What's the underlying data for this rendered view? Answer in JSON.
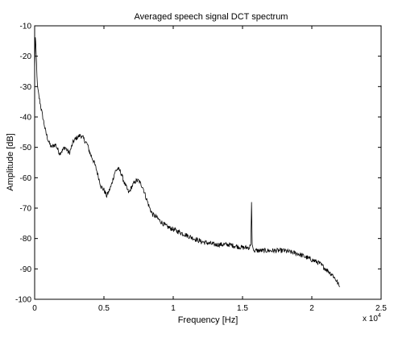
{
  "chart_data": {
    "type": "line",
    "title": "Averaged speech signal DCT spectrum",
    "xlabel": "Frequency [Hz]",
    "ylabel": "Amplitude [dB]",
    "x_multiplier_label": "x 10",
    "x_multiplier_exponent": "4",
    "xlim": [
      0,
      2.5
    ],
    "ylim": [
      -100,
      -10
    ],
    "grid": false,
    "legend": "none",
    "x_ticks": [
      0,
      0.5,
      1,
      1.5,
      2,
      2.5
    ],
    "x_tick_labels": [
      "0",
      "0.5",
      "1",
      "1.5",
      "2",
      "2.5"
    ],
    "y_ticks": [
      -100,
      -90,
      -80,
      -70,
      -60,
      -50,
      -40,
      -30,
      -20,
      -10
    ],
    "y_tick_labels": [
      "-100",
      "-90",
      "-80",
      "-70",
      "-60",
      "-50",
      "-40",
      "-30",
      "-20",
      "-10"
    ],
    "series": [
      {
        "x": [
          0,
          0.005,
          0.01,
          0.02,
          0.03,
          0.05,
          0.08,
          0.1,
          0.12,
          0.15,
          0.18,
          0.2,
          0.22,
          0.25,
          0.28,
          0.3,
          0.33,
          0.35,
          0.38,
          0.4,
          0.43,
          0.45,
          0.48,
          0.5,
          0.52,
          0.55,
          0.58,
          0.6,
          0.62,
          0.65,
          0.68,
          0.7,
          0.73,
          0.75,
          0.78,
          0.8,
          0.83,
          0.85,
          0.88,
          0.9,
          0.95,
          1.0,
          1.05,
          1.1,
          1.15,
          1.2,
          1.3,
          1.4,
          1.5,
          1.55,
          1.56,
          1.565,
          1.57,
          1.575,
          1.58,
          1.6,
          1.7,
          1.8,
          1.9,
          2.0,
          2.05,
          2.1,
          2.15,
          2.18,
          2.2
        ],
        "y": [
          -25,
          -14,
          -18,
          -30,
          -33,
          -38,
          -45,
          -48,
          -50,
          -49,
          -52,
          -51,
          -50,
          -52,
          -48,
          -47,
          -46,
          -47,
          -49,
          -52,
          -55,
          -58,
          -63,
          -64,
          -66,
          -63,
          -58,
          -57,
          -58,
          -62,
          -65,
          -63,
          -61,
          -61,
          -63,
          -66,
          -70,
          -72,
          -73,
          -74,
          -76,
          -77,
          -78,
          -79,
          -80,
          -81,
          -82,
          -82,
          -83,
          -83,
          -82,
          -68,
          -82,
          -83,
          -84,
          -84,
          -84,
          -84,
          -85,
          -87,
          -88,
          -90,
          -92,
          -94,
          -96
        ]
      }
    ]
  }
}
